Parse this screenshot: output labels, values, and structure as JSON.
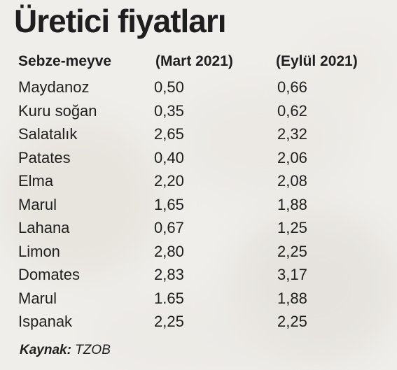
{
  "title": "Üretici fiyatları",
  "headers": {
    "product": "Sebze-meyve",
    "march": "(Mart 2021)",
    "september": "(Eylül 2021)"
  },
  "rows": [
    {
      "name": "Maydanoz",
      "march": "0,50",
      "september": "0,66"
    },
    {
      "name": "Kuru soğan",
      "march": "0,35",
      "september": "0,62"
    },
    {
      "name": "Salatalık",
      "march": "2,65",
      "september": "2,32"
    },
    {
      "name": "Patates",
      "march": "0,40",
      "september": "2,06"
    },
    {
      "name": "Elma",
      "march": "2,20",
      "september": "2,08"
    },
    {
      "name": "Marul",
      "march": "1,65",
      "september": "1,88"
    },
    {
      "name": "Lahana",
      "march": "0,67",
      "september": "1,25"
    },
    {
      "name": "Limon",
      "march": "2,80",
      "september": "2,25"
    },
    {
      "name": "Domates",
      "march": "2,83",
      "september": "3,17"
    },
    {
      "name": "Marul",
      "march": "1.65",
      "september": "1,88"
    },
    {
      "name": "Ispanak",
      "march": "2,25",
      "september": "2,25"
    }
  ],
  "source": {
    "label": "Kaynak:",
    "value": "TZOB"
  }
}
